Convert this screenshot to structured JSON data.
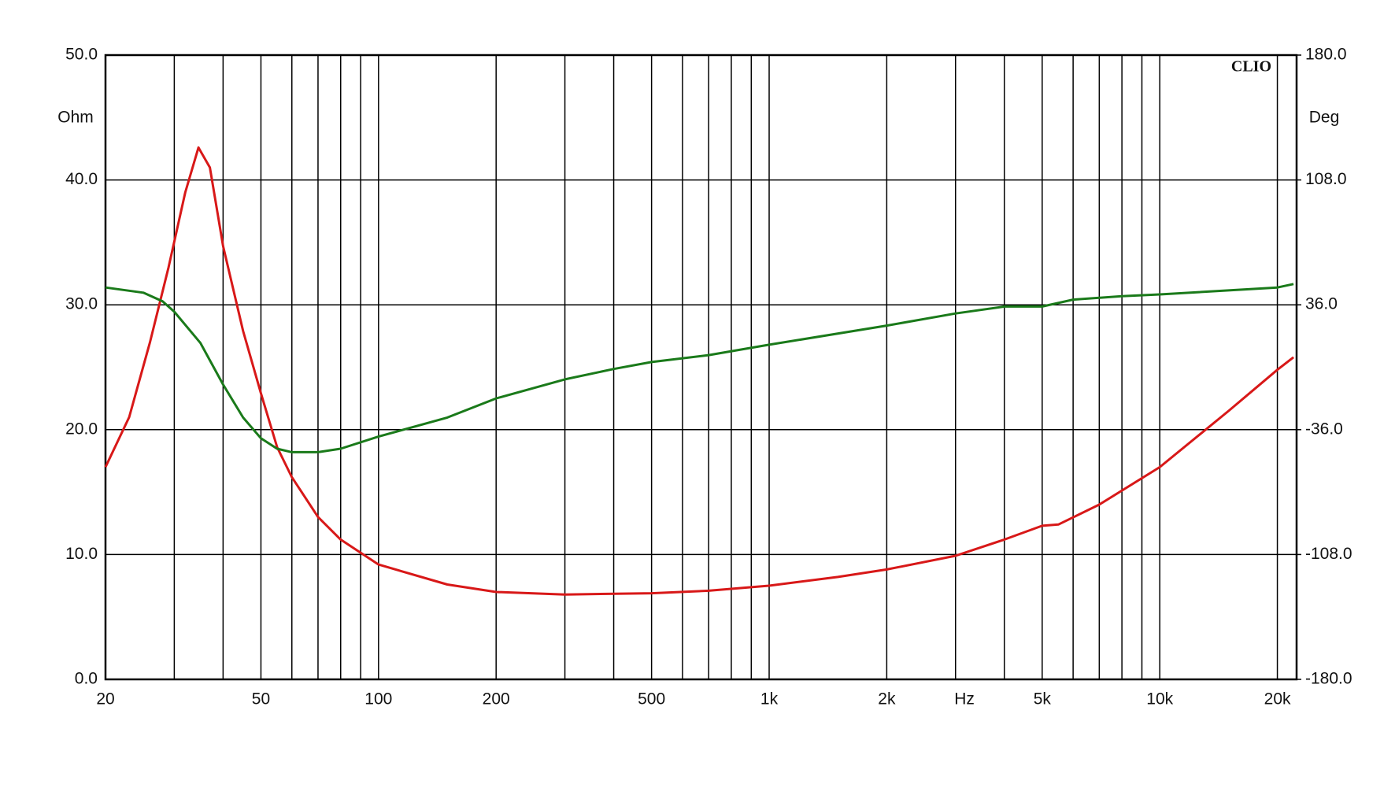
{
  "chart_data": {
    "type": "line",
    "brand": "CLIO",
    "y_unit": "Ohm",
    "y2_unit": "Deg",
    "x_label": "Hz",
    "x_label_at": 3162,
    "log_x": true,
    "grid": true,
    "xlim": [
      20,
      22400
    ],
    "xticks": [
      {
        "value": 20,
        "label": "20"
      },
      {
        "value": 50,
        "label": "50"
      },
      {
        "value": 100,
        "label": "100"
      },
      {
        "value": 200,
        "label": "200"
      },
      {
        "value": 500,
        "label": "500"
      },
      {
        "value": 1000,
        "label": "1k"
      },
      {
        "value": 2000,
        "label": "2k"
      },
      {
        "value": 5000,
        "label": "5k"
      },
      {
        "value": 10000,
        "label": "10k"
      },
      {
        "value": 20000,
        "label": "20k"
      }
    ],
    "xminor": [
      30,
      40,
      60,
      70,
      80,
      90,
      300,
      400,
      600,
      700,
      800,
      900,
      3000,
      4000,
      6000,
      7000,
      8000,
      9000
    ],
    "ylim": [
      0,
      50
    ],
    "yticks": [
      {
        "value": 0,
        "label": "0.0"
      },
      {
        "value": 10,
        "label": "10.0"
      },
      {
        "value": 20,
        "label": "20.0"
      },
      {
        "value": 30,
        "label": "30.0"
      },
      {
        "value": 40,
        "label": "40.0"
      },
      {
        "value": 50,
        "label": "50.0"
      }
    ],
    "y2lim": [
      -180,
      180
    ],
    "y2ticks": [
      {
        "value": -180,
        "label": "-180.0"
      },
      {
        "value": -108,
        "label": "-108.0"
      },
      {
        "value": -36,
        "label": "-36.0"
      },
      {
        "value": 36,
        "label": "36.0"
      },
      {
        "value": 108,
        "label": "108.0"
      },
      {
        "value": 180,
        "label": "180.0"
      }
    ],
    "series": [
      {
        "color": "#d81818",
        "x": [
          20,
          23,
          26,
          29,
          32,
          34.6,
          37,
          40,
          45,
          50,
          55,
          60,
          70,
          80,
          100,
          150,
          200,
          300,
          500,
          700,
          1000,
          1500,
          2000,
          3000,
          4000,
          5000,
          5500,
          7000,
          10000,
          15000,
          20000,
          22000
        ],
        "values": [
          17.0,
          21,
          27,
          33,
          39,
          42.6,
          41,
          34.7,
          27.9,
          22.9,
          18.6,
          16.2,
          13,
          11.2,
          9.2,
          7.6,
          7.0,
          6.8,
          6.9,
          7.1,
          7.5,
          8.2,
          8.8,
          9.9,
          11.2,
          12.3,
          12.4,
          14.0,
          17.0,
          21.5,
          24.8,
          25.8
        ]
      },
      {
        "color": "#1a7a1a",
        "axis": "y2",
        "x": [
          20,
          25,
          28,
          30,
          35,
          40,
          45,
          50,
          55,
          60,
          70,
          80,
          100,
          150,
          200,
          300,
          400,
          500,
          700,
          1000,
          2000,
          3000,
          4000,
          5000,
          6000,
          8000,
          10000,
          20000,
          22000
        ],
        "values": [
          46,
          43,
          38,
          32,
          14,
          -10,
          -29,
          -41,
          -47,
          -49,
          -49,
          -47,
          -40,
          -29,
          -18,
          -7,
          -1,
          3,
          7,
          13,
          24,
          31,
          35,
          35,
          39,
          41,
          42,
          46,
          48
        ]
      }
    ]
  }
}
